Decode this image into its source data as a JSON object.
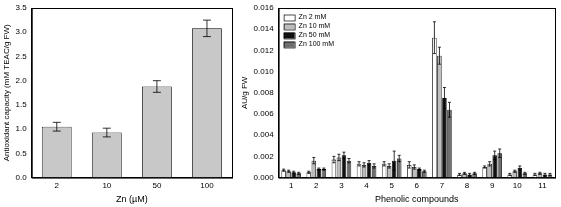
{
  "chart_data": [
    {
      "type": "bar",
      "x_label": "Zn (µM)",
      "y_label": "Antioxidant capacity (mM TEAC/g FW)",
      "categories": [
        "2",
        "10",
        "50",
        "100"
      ],
      "values": [
        1.05,
        0.93,
        1.88,
        3.08
      ],
      "errors": [
        0.09,
        0.09,
        0.12,
        0.17
      ],
      "color": "#c8c8c8",
      "ylim": [
        0,
        3.5
      ],
      "yticks": [
        {
          "value": 0,
          "label": "0.0"
        },
        0.5,
        {
          "value": 1,
          "label": "1.0"
        },
        1.5,
        {
          "value": 2,
          "label": "2.0"
        },
        2.5,
        {
          "value": 3,
          "label": "3.0"
        },
        3.5
      ],
      "grid": false
    },
    {
      "type": "bar",
      "x_label": "Phenolic compounds",
      "y_label": "AU/g FW",
      "categories": [
        "1",
        "2",
        "3",
        "4",
        "5",
        "6",
        "7",
        "8",
        "9",
        "10",
        "11"
      ],
      "series": [
        {
          "name": "Zn 2 mM",
          "color": "#ffffff",
          "values": [
            0.0007,
            0.0005,
            0.0017,
            0.0013,
            0.0013,
            0.0012,
            0.0132,
            0.0003,
            0.001,
            0.0003,
            0.0003
          ],
          "errors": [
            0.0001,
            0.0001,
            0.0003,
            0.0002,
            0.0002,
            0.0003,
            0.0015,
            0.0001,
            0.0001,
            0.0001,
            0.0001
          ]
        },
        {
          "name": "Zn 10 mM",
          "color": "#bdbdbd",
          "values": [
            0.0006,
            0.0016,
            0.0019,
            0.0012,
            0.0011,
            0.001,
            0.0115,
            0.0004,
            0.0013,
            0.0006,
            0.0004
          ],
          "errors": [
            0.0001,
            0.0003,
            0.0003,
            0.0002,
            0.0002,
            0.0002,
            0.0008,
            0.0001,
            0.0002,
            0.0001,
            0.0001
          ]
        },
        {
          "name": "Zn 50 mM",
          "color": "#111111",
          "values": [
            0.0005,
            0.0008,
            0.0021,
            0.0014,
            0.0016,
            0.0008,
            0.0075,
            0.0003,
            0.0021,
            0.0009,
            0.0003
          ],
          "errors": [
            0.0001,
            0.0001,
            0.0003,
            0.0002,
            0.0009,
            0.0001,
            0.001,
            0.0001,
            0.0004,
            0.0002,
            0.0001
          ]
        },
        {
          "name": "Zn 100 mM",
          "color": "#6e6e6e",
          "values": [
            0.0004,
            0.0008,
            0.0016,
            0.0011,
            0.0018,
            0.0006,
            0.0064,
            0.0004,
            0.0023,
            0.0004,
            0.0003
          ],
          "errors": [
            0.0001,
            0.0001,
            0.0002,
            0.0002,
            0.0003,
            0.0001,
            0.0007,
            0.0001,
            0.0004,
            0.0001,
            0.0001
          ]
        }
      ],
      "ylim": [
        0,
        0.016
      ],
      "yticks": [
        {
          "value": 0,
          "label": "0.000"
        },
        0.002,
        0.004,
        0.006,
        0.008,
        {
          "value": 0.01,
          "label": "0.010"
        },
        0.012,
        0.014,
        {
          "value": 0.016,
          "label": "0.016"
        }
      ],
      "legend": "upper left",
      "grid": false
    }
  ]
}
